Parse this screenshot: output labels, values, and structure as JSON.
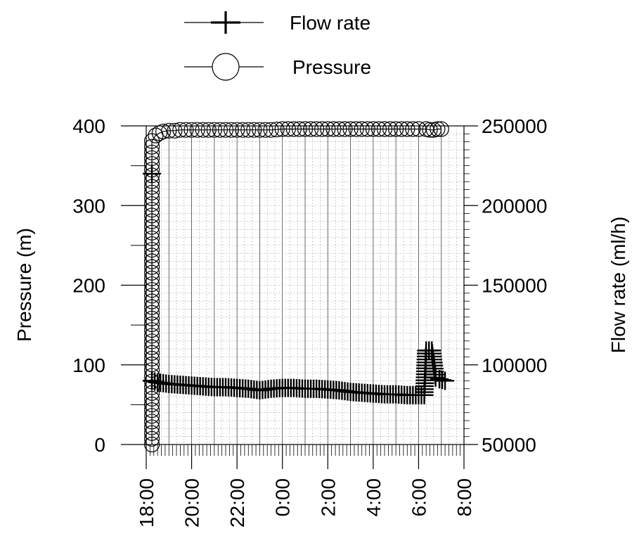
{
  "chart_data": {
    "type": "line",
    "legend": {
      "placement": "top-center",
      "entries": [
        {
          "label": "Flow rate",
          "marker": "plus"
        },
        {
          "label": "Pressure",
          "marker": "circle"
        }
      ]
    },
    "x_axis": {
      "type": "time",
      "range": [
        "18:00",
        "8:00"
      ],
      "tick_labels": [
        "18:00",
        "20:00",
        "22:00",
        "0:00",
        "2:00",
        "4:00",
        "6:00",
        "8:00"
      ],
      "label_rotation": "vertical"
    },
    "y_left": {
      "label": "Pressure (m)",
      "range": [
        0,
        400
      ],
      "tick_labels": [
        "0",
        "100",
        "200",
        "300",
        "400"
      ]
    },
    "y_right": {
      "label": "Flow rate (ml/h)",
      "range": [
        50000,
        250000
      ],
      "tick_labels": [
        "50000",
        "100000",
        "150000",
        "200000",
        "250000"
      ]
    },
    "grid": true,
    "series": [
      {
        "name": "Pressure",
        "axis": "left",
        "marker": "circle",
        "points": [
          [
            "18:15",
            0
          ],
          [
            "18:15",
            381
          ],
          [
            "18:25",
            388
          ],
          [
            "18:35",
            391
          ],
          [
            "18:45",
            393
          ],
          [
            "19:00",
            394
          ],
          [
            "19:15",
            394
          ],
          [
            "19:30",
            395
          ],
          [
            "19:45",
            395
          ],
          [
            "20:00",
            395
          ],
          [
            "20:30",
            395
          ],
          [
            "21:00",
            395
          ],
          [
            "21:30",
            395
          ],
          [
            "22:00",
            395
          ],
          [
            "22:30",
            395
          ],
          [
            "23:00",
            395
          ],
          [
            "23:30",
            395
          ],
          [
            "0:00",
            396
          ],
          [
            "0:30",
            396
          ],
          [
            "1:00",
            396
          ],
          [
            "1:30",
            396
          ],
          [
            "2:00",
            396
          ],
          [
            "2:30",
            396
          ],
          [
            "3:00",
            396
          ],
          [
            "3:30",
            396
          ],
          [
            "4:00",
            396
          ],
          [
            "4:30",
            396
          ],
          [
            "5:00",
            396
          ],
          [
            "5:30",
            396
          ],
          [
            "6:00",
            396
          ],
          [
            "6:20",
            396
          ],
          [
            "6:30",
            395
          ],
          [
            "6:40",
            395
          ],
          [
            "6:50",
            396
          ],
          [
            "7:00",
            396
          ]
        ]
      },
      {
        "name": "Flow rate",
        "axis": "right",
        "marker": "plus",
        "points": [
          [
            "18:15",
            90000
          ],
          [
            "18:15",
            220000
          ],
          [
            "18:15",
            90000
          ],
          [
            "18:30",
            89000
          ],
          [
            "19:00",
            88000
          ],
          [
            "19:30",
            87500
          ],
          [
            "20:00",
            87000
          ],
          [
            "20:30",
            86500
          ],
          [
            "21:00",
            86000
          ],
          [
            "21:30",
            86000
          ],
          [
            "22:00",
            85500
          ],
          [
            "22:30",
            85000
          ],
          [
            "23:00",
            84000
          ],
          [
            "23:30",
            85000
          ],
          [
            "0:00",
            85500
          ],
          [
            "0:30",
            85500
          ],
          [
            "1:00",
            85000
          ],
          [
            "1:30",
            85000
          ],
          [
            "2:00",
            84500
          ],
          [
            "2:30",
            84000
          ],
          [
            "3:00",
            83000
          ],
          [
            "3:30",
            82500
          ],
          [
            "4:00",
            82000
          ],
          [
            "4:30",
            81500
          ],
          [
            "5:00",
            81500
          ],
          [
            "5:30",
            81000
          ],
          [
            "6:00",
            81000
          ],
          [
            "6:15",
            81000
          ],
          [
            "6:20",
            109000
          ],
          [
            "6:35",
            109000
          ],
          [
            "6:45",
            92000
          ],
          [
            "6:55",
            91000
          ],
          [
            "7:10",
            90000
          ]
        ]
      }
    ]
  }
}
